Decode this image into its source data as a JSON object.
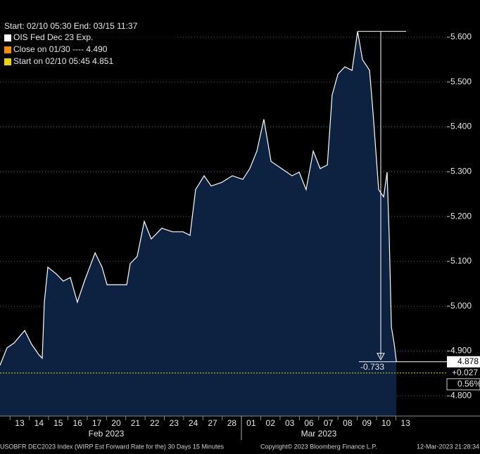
{
  "chart_data": {
    "type": "area",
    "legend_header": "Start: 02/10 05:30 End: 03/15 11:37",
    "legend": [
      {
        "text": "OIS Fed Dec 23 Exp.",
        "color": "#ffffff"
      },
      {
        "text": "Close on 01/30 ----  4.490",
        "color": "#f28c00"
      },
      {
        "text": "Start on 02/10 05:45 4.851",
        "color": "#e8d400"
      }
    ],
    "series": [
      {
        "name": "OIS Fed Dec 23 Exp.",
        "color": "#ffffff",
        "fill": "#0c2240",
        "x": [
          -1.02,
          -0.66,
          -0.29,
          0.26,
          0.62,
          0.99,
          1.17,
          1.28,
          1.46,
          1.9,
          2.26,
          2.63,
          2.99,
          3.36,
          3.91,
          4.27,
          4.53,
          5.55,
          5.73,
          6.09,
          6.46,
          6.82,
          7.37,
          7.92,
          8.47,
          8.83,
          9.12,
          9.56,
          9.93,
          10.47,
          11.02,
          11.57,
          11.93,
          12.3,
          12.66,
          13.03,
          13.58,
          14.12,
          14.49,
          14.85,
          15.22,
          15.58,
          15.95,
          16.2,
          16.5,
          16.86,
          17.23,
          17.52,
          17.77,
          18.14,
          18.32,
          18.61,
          18.87,
          19.05,
          19.16,
          19.27,
          19.42,
          19.53
        ],
        "values": [
          4.868,
          4.907,
          4.918,
          4.946,
          4.915,
          4.892,
          4.884,
          5.009,
          5.087,
          5.072,
          5.056,
          5.064,
          5.009,
          5.056,
          5.119,
          5.087,
          5.048,
          5.048,
          5.095,
          5.111,
          5.189,
          5.15,
          5.174,
          5.166,
          5.166,
          5.158,
          5.26,
          5.291,
          5.268,
          5.276,
          5.291,
          5.283,
          5.307,
          5.346,
          5.417,
          5.323,
          5.307,
          5.291,
          5.299,
          5.26,
          5.346,
          5.307,
          5.315,
          5.471,
          5.518,
          5.534,
          5.526,
          5.613,
          5.55,
          5.526,
          5.432,
          5.26,
          5.244,
          5.299,
          5.15,
          4.954,
          4.915,
          4.876
        ]
      }
    ],
    "reference_line": {
      "value": 4.851,
      "color": "#e8d400"
    },
    "last_value_label": "4.878",
    "change_label": "+0.027",
    "change_pct_label": "0.56%",
    "drop_label": "-0.733",
    "xlim": [
      -1.02,
      22.15
    ],
    "xticks": [
      {
        "value": 0,
        "label": "13"
      },
      {
        "value": 1,
        "label": "14"
      },
      {
        "value": 2,
        "label": "15"
      },
      {
        "value": 3,
        "label": "16"
      },
      {
        "value": 4,
        "label": "17"
      },
      {
        "value": 5,
        "label": "20"
      },
      {
        "value": 6,
        "label": "21"
      },
      {
        "value": 7,
        "label": "22"
      },
      {
        "value": 8,
        "label": "23"
      },
      {
        "value": 9,
        "label": "24"
      },
      {
        "value": 10,
        "label": "27"
      },
      {
        "value": 11,
        "label": "28"
      },
      {
        "value": 12,
        "label": "01"
      },
      {
        "value": 13,
        "label": "02"
      },
      {
        "value": 14,
        "label": "03"
      },
      {
        "value": 15,
        "label": "06"
      },
      {
        "value": 16,
        "label": "07"
      },
      {
        "value": 17,
        "label": "08"
      },
      {
        "value": 18,
        "label": "09"
      },
      {
        "value": 19,
        "label": "10"
      },
      {
        "value": 20,
        "label": "13"
      }
    ],
    "month_labels": [
      "Feb 2023",
      "Mar 2023"
    ],
    "ylim": [
      4.755,
      5.683
    ],
    "yticks": [
      {
        "value": 4.8,
        "label": "4.800"
      },
      {
        "value": 4.9,
        "label": "4.900"
      },
      {
        "value": 5.0,
        "label": "5.000"
      },
      {
        "value": 5.1,
        "label": "5.100"
      },
      {
        "value": 5.2,
        "label": "5.200"
      },
      {
        "value": 5.3,
        "label": "5.300"
      },
      {
        "value": 5.4,
        "label": "5.400"
      },
      {
        "value": 5.5,
        "label": "5.500"
      },
      {
        "value": 5.6,
        "label": "5.600"
      }
    ],
    "grid": true,
    "footer": [
      "USOBFR DEC2023 Index (WIRP Est Forward Rate for the) 30 Days 15 Minutes",
      "Copyright© 2023 Bloomberg Finance L.P.",
      "12-Mar-2023 21:28:34"
    ]
  }
}
